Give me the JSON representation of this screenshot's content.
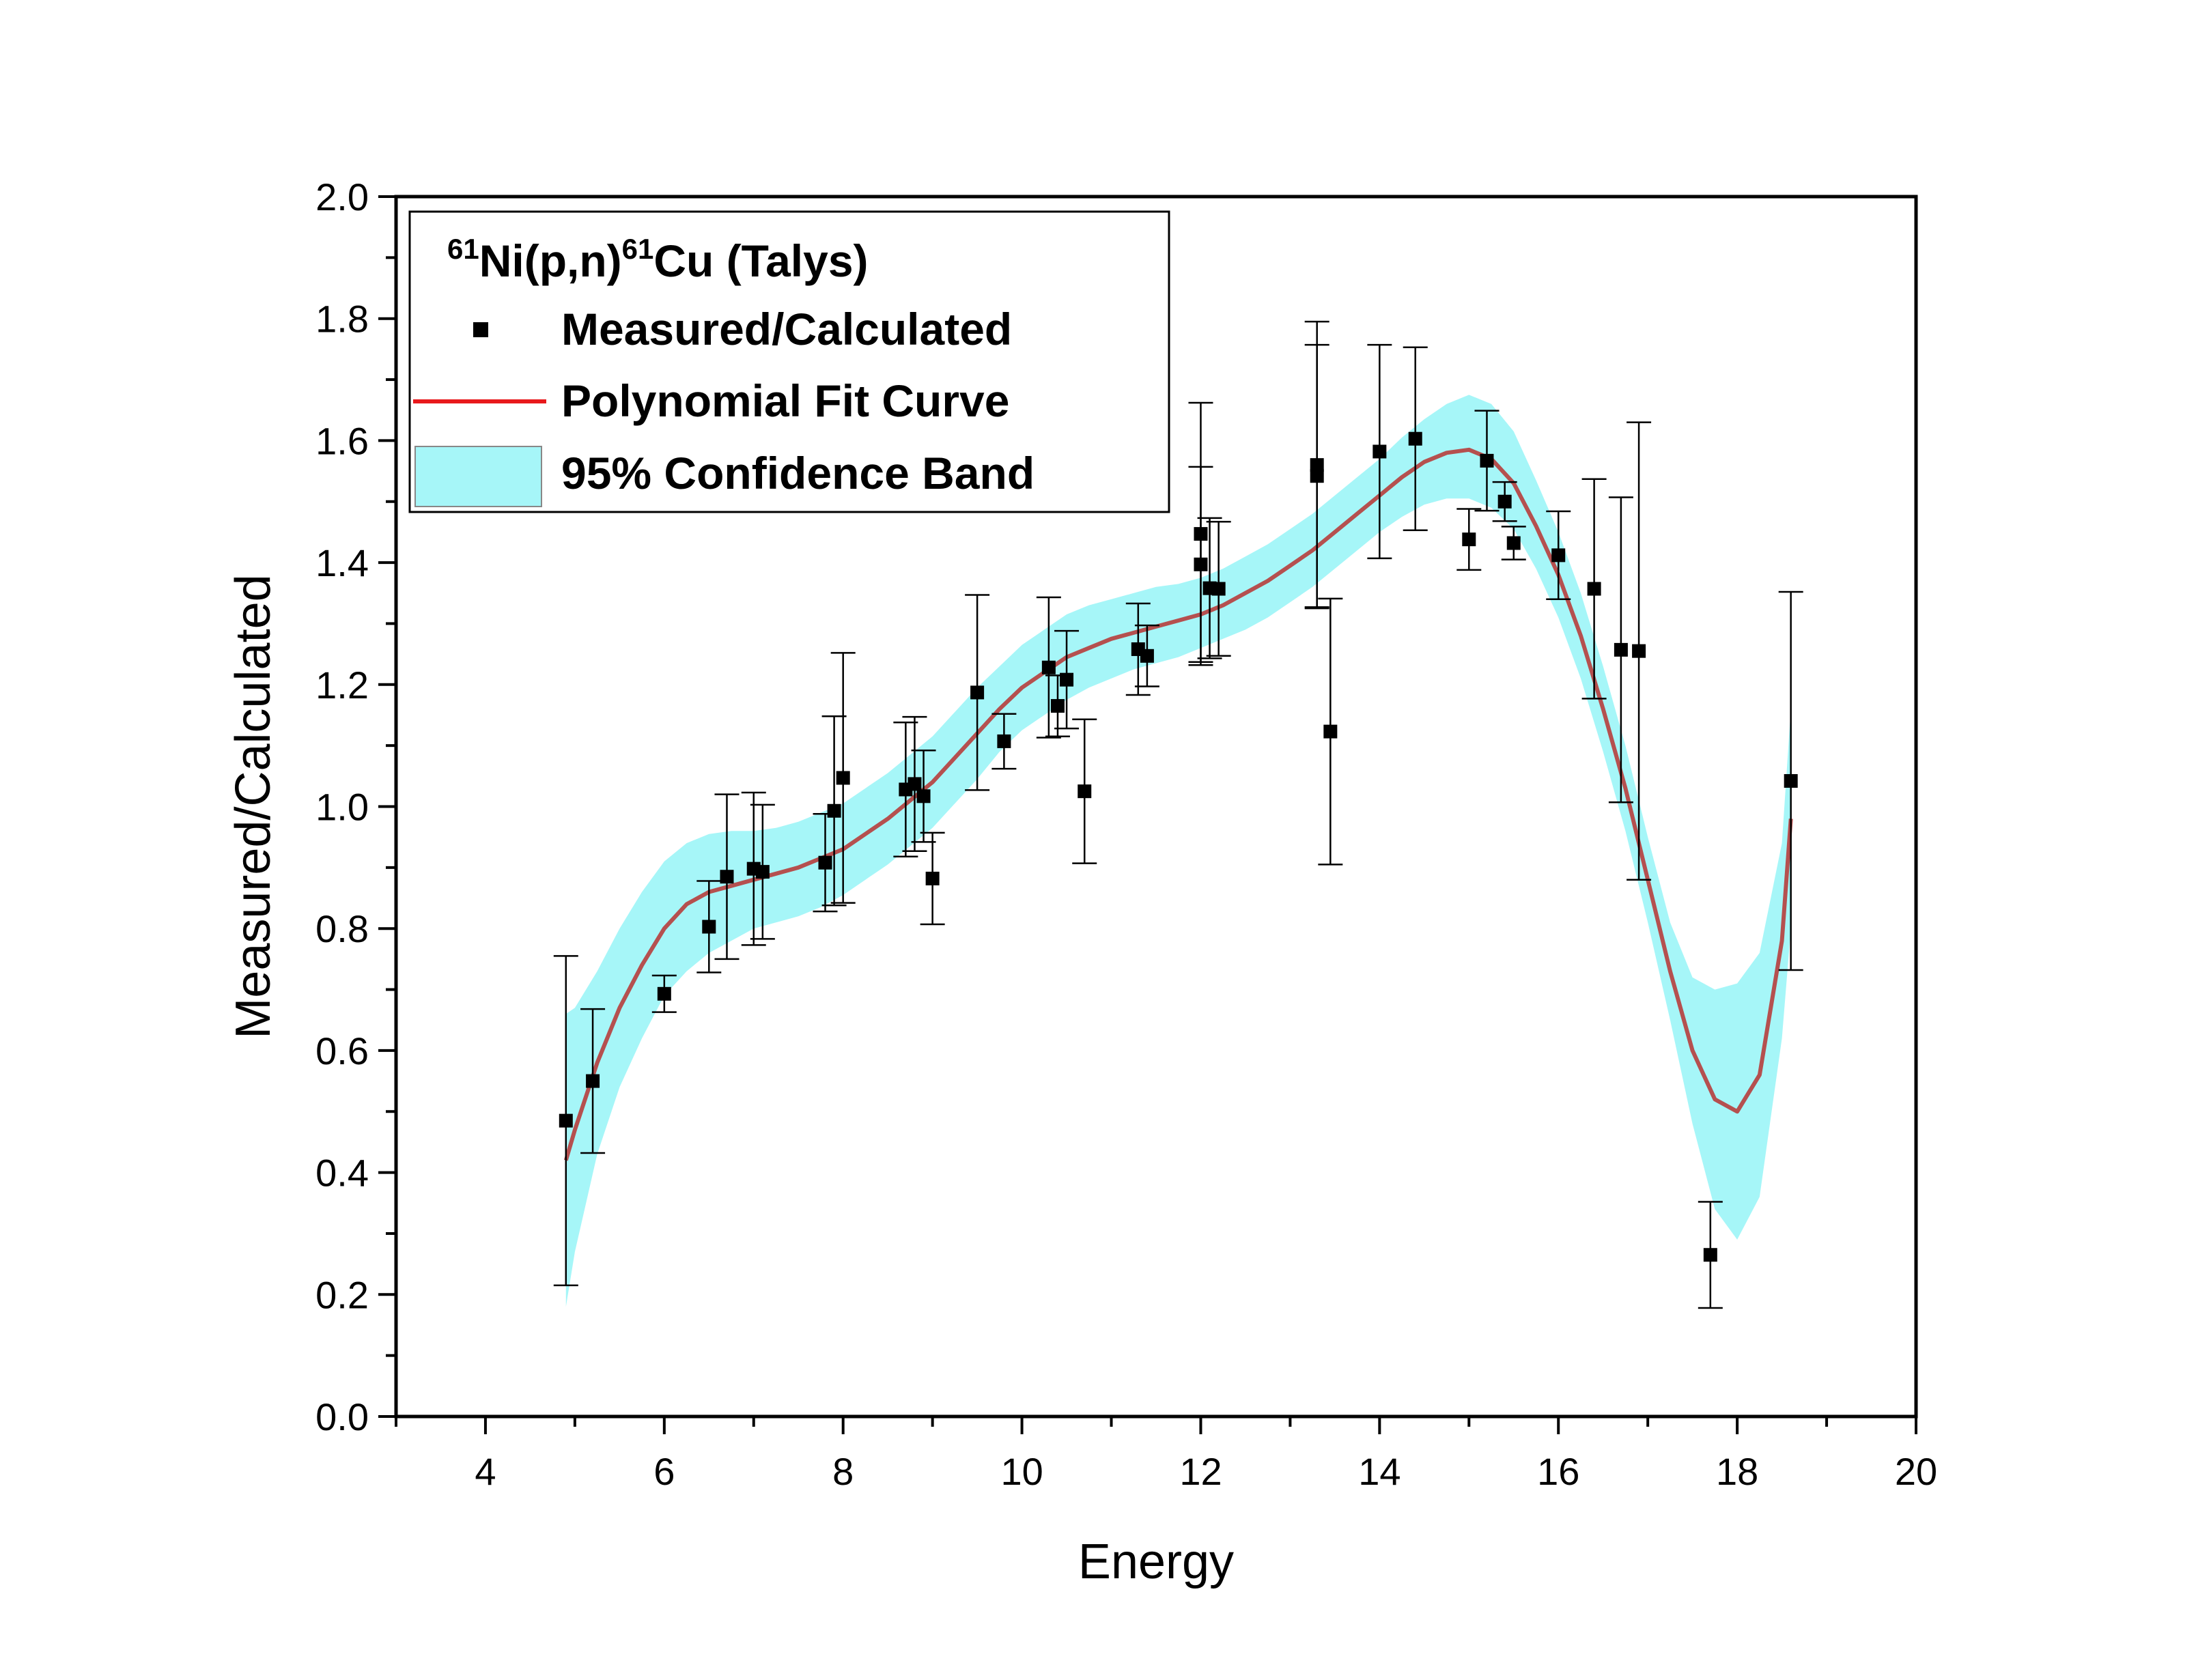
{
  "chart_data": {
    "type": "scatter",
    "xlabel": "Energy",
    "ylabel": "Measured/Calculated",
    "xlim": [
      3,
      20
    ],
    "ylim": [
      0.0,
      2.0
    ],
    "x_ticks": [
      "4",
      "6",
      "8",
      "10",
      "12",
      "14",
      "16",
      "18",
      "20"
    ],
    "y_ticks": [
      "0.0",
      "0.2",
      "0.4",
      "0.6",
      "0.8",
      "1.0",
      "1.2",
      "1.4",
      "1.6",
      "1.8",
      "2.0"
    ],
    "grid": false,
    "legend": {
      "placement": "top-left",
      "title_parts": [
        {
          "text": "61",
          "sup": true
        },
        {
          "text": "Ni(p,n)",
          "sup": false
        },
        {
          "text": "61",
          "sup": true
        },
        {
          "text": "Cu (Talys)",
          "sup": false
        }
      ],
      "entries": [
        "Measured/Calculated",
        "Polynomial Fit Curve",
        "95% Confidence Band"
      ]
    },
    "colors": {
      "points": "#000000",
      "fit_curve": "#b5504f",
      "fit_curve_legend": "#e8191c",
      "confidence_band": "#a6f6f8",
      "axis": "#000000"
    },
    "series": [
      {
        "name": "Measured/Calculated",
        "type": "scatter",
        "x": [
          4.9,
          5.2,
          6.0,
          6.5,
          6.7,
          7.0,
          7.1,
          7.8,
          7.9,
          8.0,
          8.7,
          8.8,
          8.9,
          9.0,
          9.5,
          9.8,
          10.3,
          10.4,
          10.5,
          10.7,
          11.3,
          11.4,
          12.0,
          12.0,
          12.1,
          12.2,
          13.3,
          13.3,
          13.45,
          14.0,
          14.4,
          15.0,
          15.2,
          15.4,
          15.5,
          16.0,
          16.4,
          16.7,
          16.9,
          17.7,
          18.6
        ],
        "y": [
          0.485,
          0.55,
          0.693,
          0.803,
          0.885,
          0.898,
          0.893,
          0.908,
          0.993,
          1.047,
          1.028,
          1.037,
          1.017,
          0.882,
          1.187,
          1.107,
          1.228,
          1.165,
          1.208,
          1.025,
          1.258,
          1.247,
          1.447,
          1.397,
          1.358,
          1.357,
          1.56,
          1.542,
          1.123,
          1.582,
          1.603,
          1.438,
          1.567,
          1.5,
          1.432,
          1.412,
          1.357,
          1.257,
          1.255,
          0.265,
          1.042
        ],
        "err": [
          0.27,
          0.118,
          0.03,
          0.075,
          0.135,
          0.125,
          0.11,
          0.08,
          0.155,
          0.205,
          0.11,
          0.11,
          0.075,
          0.075,
          0.16,
          0.045,
          0.115,
          0.05,
          0.08,
          0.118,
          0.075,
          0.05,
          0.215,
          0.16,
          0.115,
          0.11,
          0.235,
          0.215,
          0.218,
          0.175,
          0.15,
          0.05,
          0.082,
          0.032,
          0.027,
          0.072,
          0.18,
          0.25,
          0.375,
          0.087,
          0.31
        ]
      },
      {
        "name": "Polynomial Fit Curve",
        "type": "line",
        "x": [
          4.9,
          5.0,
          5.25,
          5.5,
          5.75,
          6.0,
          6.25,
          6.5,
          6.75,
          7.0,
          7.25,
          7.5,
          7.75,
          8.0,
          8.25,
          8.5,
          8.75,
          9.0,
          9.25,
          9.5,
          9.75,
          10.0,
          10.25,
          10.5,
          10.75,
          11.0,
          11.25,
          11.5,
          11.75,
          12.0,
          12.25,
          12.5,
          12.75,
          13.0,
          13.25,
          13.5,
          13.75,
          14.0,
          14.25,
          14.5,
          14.75,
          15.0,
          15.25,
          15.5,
          15.75,
          16.0,
          16.25,
          16.5,
          16.75,
          17.0,
          17.25,
          17.5,
          17.75,
          18.0,
          18.25,
          18.5,
          18.6
        ],
        "y": [
          0.42,
          0.47,
          0.58,
          0.67,
          0.74,
          0.8,
          0.84,
          0.86,
          0.87,
          0.88,
          0.89,
          0.9,
          0.915,
          0.93,
          0.955,
          0.98,
          1.01,
          1.04,
          1.08,
          1.12,
          1.16,
          1.195,
          1.22,
          1.245,
          1.26,
          1.275,
          1.285,
          1.295,
          1.305,
          1.315,
          1.33,
          1.35,
          1.37,
          1.395,
          1.42,
          1.45,
          1.48,
          1.51,
          1.54,
          1.565,
          1.58,
          1.585,
          1.57,
          1.53,
          1.46,
          1.38,
          1.28,
          1.16,
          1.03,
          0.88,
          0.73,
          0.6,
          0.52,
          0.5,
          0.56,
          0.78,
          0.98
        ]
      },
      {
        "name": "95% Confidence Band",
        "type": "area",
        "x": [
          4.9,
          5.0,
          5.25,
          5.5,
          5.75,
          6.0,
          6.25,
          6.5,
          6.75,
          7.0,
          7.25,
          7.5,
          7.75,
          8.0,
          8.25,
          8.5,
          8.75,
          9.0,
          9.25,
          9.5,
          9.75,
          10.0,
          10.25,
          10.5,
          10.75,
          11.0,
          11.25,
          11.5,
          11.75,
          12.0,
          12.25,
          12.5,
          12.75,
          13.0,
          13.25,
          13.5,
          13.75,
          14.0,
          14.25,
          14.5,
          14.75,
          15.0,
          15.25,
          15.5,
          15.75,
          16.0,
          16.25,
          16.5,
          16.75,
          17.0,
          17.25,
          17.5,
          17.75,
          18.0,
          18.25,
          18.5,
          18.6
        ],
        "lower": [
          0.18,
          0.27,
          0.43,
          0.54,
          0.62,
          0.69,
          0.73,
          0.76,
          0.78,
          0.8,
          0.81,
          0.82,
          0.835,
          0.855,
          0.88,
          0.905,
          0.935,
          0.965,
          1.005,
          1.045,
          1.09,
          1.125,
          1.15,
          1.175,
          1.195,
          1.21,
          1.225,
          1.235,
          1.245,
          1.26,
          1.275,
          1.29,
          1.31,
          1.335,
          1.36,
          1.39,
          1.42,
          1.45,
          1.475,
          1.495,
          1.505,
          1.505,
          1.49,
          1.455,
          1.39,
          1.31,
          1.21,
          1.09,
          0.96,
          0.81,
          0.65,
          0.48,
          0.34,
          0.29,
          0.36,
          0.62,
          0.8
        ],
        "upper": [
          0.66,
          0.67,
          0.73,
          0.8,
          0.86,
          0.91,
          0.94,
          0.955,
          0.96,
          0.96,
          0.965,
          0.975,
          0.99,
          1.005,
          1.03,
          1.055,
          1.085,
          1.115,
          1.155,
          1.195,
          1.23,
          1.265,
          1.29,
          1.315,
          1.33,
          1.34,
          1.35,
          1.36,
          1.365,
          1.375,
          1.39,
          1.41,
          1.43,
          1.455,
          1.48,
          1.51,
          1.54,
          1.57,
          1.605,
          1.635,
          1.66,
          1.675,
          1.66,
          1.615,
          1.535,
          1.45,
          1.35,
          1.23,
          1.1,
          0.95,
          0.81,
          0.72,
          0.7,
          0.71,
          0.76,
          0.94,
          1.16
        ]
      }
    ]
  }
}
